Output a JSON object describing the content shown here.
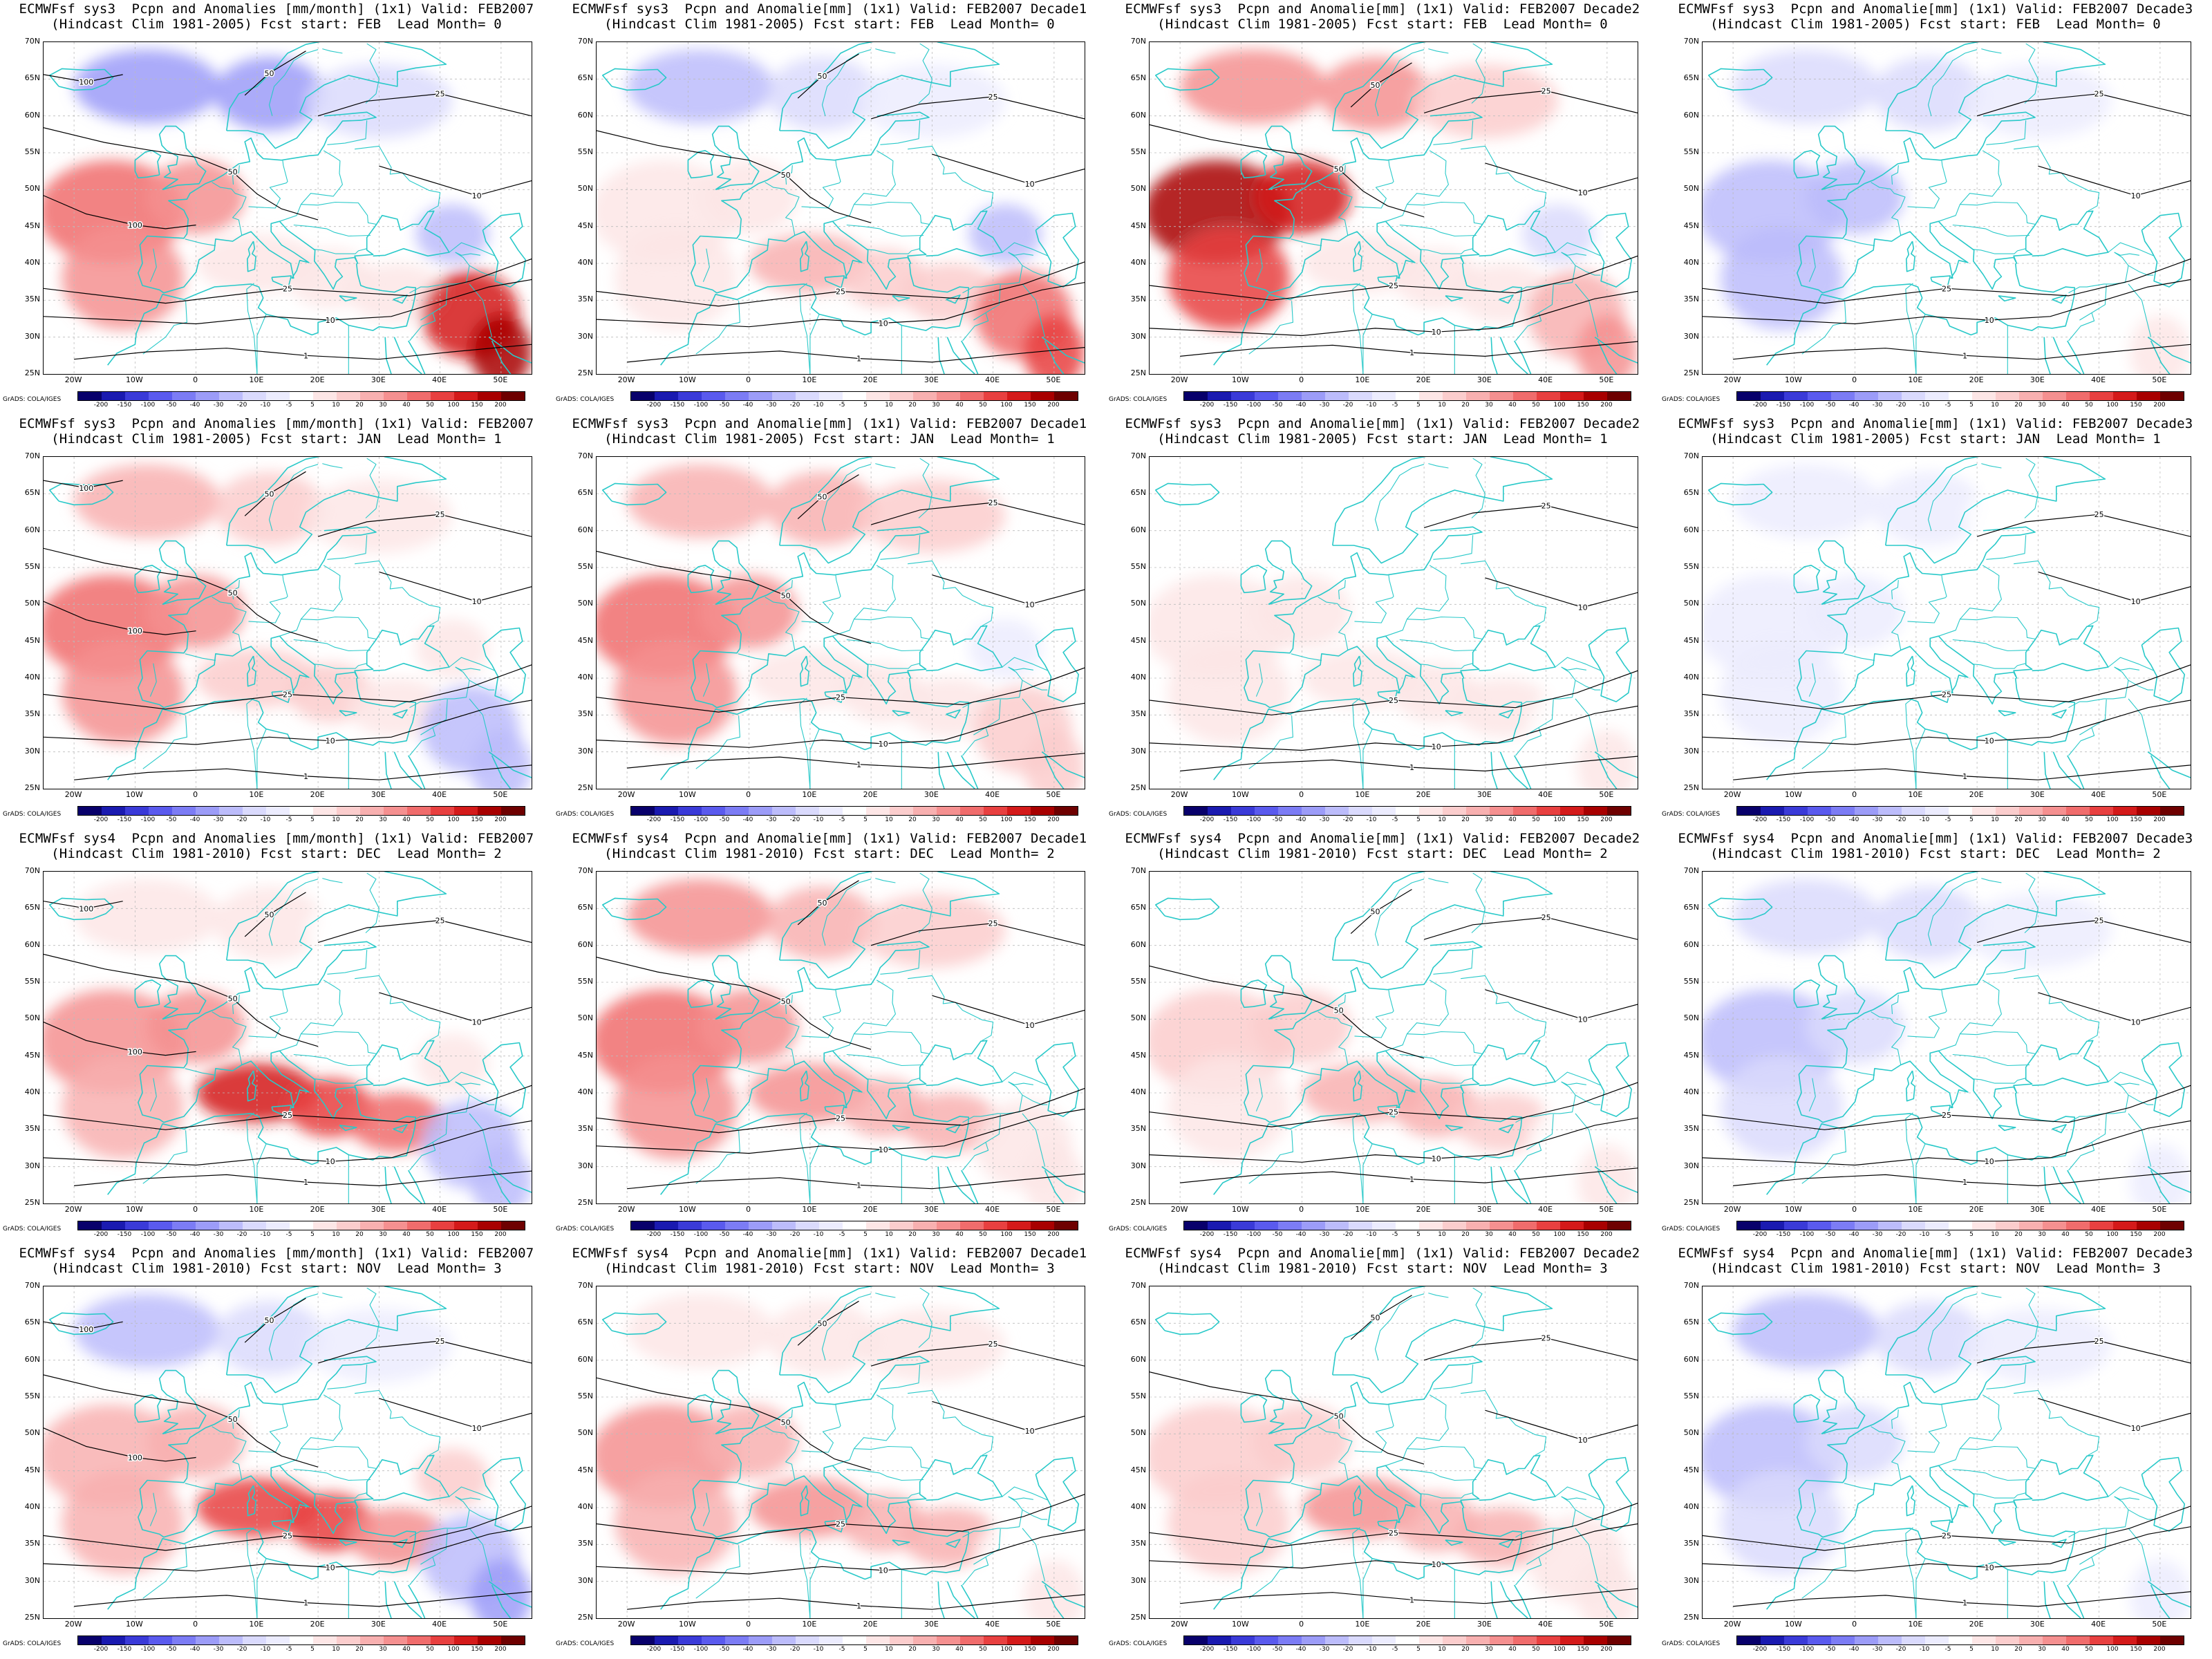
{
  "panels": [
    {
      "line1": "ECMWFsf sys3  Pcpn and Anomalies [mm/month] (1x1) Valid: FEB2007",
      "line2": "(Hindcast Clim 1981-2005) Fcst start: FEB  Lead Month= 0",
      "pattern": {
        "west": 0.55,
        "east": 0.75,
        "north": -0.45,
        "south": 0.1
      },
      "contours": [
        "100",
        "50",
        "25",
        "10",
        "1"
      ]
    },
    {
      "line1": "ECMWFsf sys3  Pcpn and Anomalie[mm] (1x1) Valid: FEB2007 Decade1",
      "line2": "(Hindcast Clim 1981-2005) Fcst start: FEB  Lead Month= 0",
      "pattern": {
        "west": 0.1,
        "east": 0.6,
        "north": -0.3,
        "south": 0.3
      },
      "contours": [
        "50",
        "25",
        "10",
        "1"
      ]
    },
    {
      "line1": "ECMWFsf sys3  Pcpn and Anomalie[mm] (1x1) Valid: FEB2007 Decade2",
      "line2": "(Hindcast Clim 1981-2005) Fcst start: FEB  Lead Month= 0",
      "pattern": {
        "west": 0.85,
        "east": 0.35,
        "north": 0.45,
        "south": 0.1
      },
      "contours": [
        "50",
        "25",
        "10",
        "1"
      ]
    },
    {
      "line1": "ECMWFsf sys3  Pcpn and Anomalie[mm] (1x1) Valid: FEB2007 Decade3",
      "line2": "(Hindcast Clim 1981-2005) Fcst start: FEB  Lead Month= 0",
      "pattern": {
        "west": -0.35,
        "east": 0.05,
        "north": -0.2,
        "south": 0.0
      },
      "contours": [
        "25",
        "10",
        "1"
      ]
    },
    {
      "line1": "ECMWFsf sys3  Pcpn and Anomalies [mm/month] (1x1) Valid: FEB2007",
      "line2": "(Hindcast Clim 1981-2005) Fcst start: JAN  Lead Month= 1",
      "pattern": {
        "west": 0.5,
        "east": -0.3,
        "north": 0.3,
        "south": 0.2
      },
      "contours": [
        "100",
        "50",
        "25",
        "10",
        "1"
      ]
    },
    {
      "line1": "ECMWFsf sys3  Pcpn and Anomalie[mm] (1x1) Valid: FEB2007 Decade1",
      "line2": "(Hindcast Clim 1981-2005) Fcst start: JAN  Lead Month= 1",
      "pattern": {
        "west": 0.55,
        "east": 0.2,
        "north": 0.35,
        "south": 0.15
      },
      "contours": [
        "50",
        "25",
        "10",
        "1"
      ]
    },
    {
      "line1": "ECMWFsf sys3  Pcpn and Anomalie[mm] (1x1) Valid: FEB2007 Decade2",
      "line2": "(Hindcast Clim 1981-2005) Fcst start: JAN  Lead Month= 1",
      "pattern": {
        "west": 0.1,
        "east": 0.05,
        "north": 0.05,
        "south": 0.15
      },
      "contours": [
        "25",
        "10",
        "1"
      ]
    },
    {
      "line1": "ECMWFsf sys3  Pcpn and Anomalie[mm] (1x1) Valid: FEB2007 Decade3",
      "line2": "(Hindcast Clim 1981-2005) Fcst start: JAN  Lead Month= 1",
      "pattern": {
        "west": -0.1,
        "east": 0.0,
        "north": -0.1,
        "south": 0.05
      },
      "contours": [
        "25",
        "10",
        "1"
      ]
    },
    {
      "line1": "ECMWFsf sys4  Pcpn and Anomalies [mm/month] (1x1) Valid: FEB2007",
      "line2": "(Hindcast Clim 1981-2010) Fcst start: DEC  Lead Month= 2",
      "pattern": {
        "west": 0.45,
        "east": -0.3,
        "north": 0.1,
        "south": 0.75
      },
      "contours": [
        "100",
        "50",
        "25",
        "10",
        "1"
      ]
    },
    {
      "line1": "ECMWFsf sys4  Pcpn and Anomalie[mm] (1x1) Valid: FEB2007 Decade1",
      "line2": "(Hindcast Clim 1981-2010) Fcst start: DEC  Lead Month= 2",
      "pattern": {
        "west": 0.55,
        "east": 0.1,
        "north": 0.4,
        "south": 0.4
      },
      "contours": [
        "50",
        "25",
        "10",
        "1"
      ]
    },
    {
      "line1": "ECMWFsf sys4  Pcpn and Anomalie[mm] (1x1) Valid: FEB2007 Decade2",
      "line2": "(Hindcast Clim 1981-2010) Fcst start: DEC  Lead Month= 2",
      "pattern": {
        "west": 0.2,
        "east": 0.05,
        "north": 0.0,
        "south": 0.35
      },
      "contours": [
        "50",
        "25",
        "10",
        "1"
      ]
    },
    {
      "line1": "ECMWFsf sys4  Pcpn and Anomalie[mm] (1x1) Valid: FEB2007 Decade3",
      "line2": "(Hindcast Clim 1981-2010) Fcst start: DEC  Lead Month= 2",
      "pattern": {
        "west": -0.3,
        "east": -0.05,
        "north": -0.2,
        "south": 0.05
      },
      "contours": [
        "25",
        "10",
        "1"
      ]
    },
    {
      "line1": "ECMWFsf sys4  Pcpn and Anomalies [mm/month] (1x1) Valid: FEB2007",
      "line2": "(Hindcast Clim 1981-2010) Fcst start: NOV  Lead Month= 3",
      "pattern": {
        "west": 0.35,
        "east": -0.35,
        "north": -0.3,
        "south": 0.7
      },
      "contours": [
        "100",
        "50",
        "25",
        "10",
        "1"
      ]
    },
    {
      "line1": "ECMWFsf sys4  Pcpn and Anomalie[mm] (1x1) Valid: FEB2007 Decade1",
      "line2": "(Hindcast Clim 1981-2010) Fcst start: NOV  Lead Month= 3",
      "pattern": {
        "west": 0.4,
        "east": 0.05,
        "north": 0.15,
        "south": 0.4
      },
      "contours": [
        "50",
        "25",
        "10",
        "1"
      ]
    },
    {
      "line1": "ECMWFsf sys4  Pcpn and Anomalie[mm] (1x1) Valid: FEB2007 Decade2",
      "line2": "(Hindcast Clim 1981-2010) Fcst start: NOV  Lead Month= 3",
      "pattern": {
        "west": 0.25,
        "east": 0.1,
        "north": 0.0,
        "south": 0.4
      },
      "contours": [
        "50",
        "25",
        "10",
        "1"
      ]
    },
    {
      "line1": "ECMWFsf sys4  Pcpn and Anomalie[mm] (1x1) Valid: FEB2007 Decade3",
      "line2": "(Hindcast Clim 1981-2010) Fcst start: NOV  Lead Month= 3",
      "pattern": {
        "west": -0.3,
        "east": -0.05,
        "north": -0.3,
        "south": 0.05
      },
      "contours": [
        "25",
        "10",
        "1"
      ]
    }
  ],
  "lat_labels": [
    "70N",
    "65N",
    "60N",
    "55N",
    "50N",
    "45N",
    "40N",
    "35N",
    "30N",
    "25N"
  ],
  "lon_labels": [
    "20W",
    "10W",
    "0",
    "10E",
    "20E",
    "30E",
    "40E",
    "50E"
  ],
  "colorbar": {
    "labels": [
      "-200",
      "-150",
      "-100",
      "-50",
      "-40",
      "-30",
      "-20",
      "-10",
      "-5",
      "5",
      "10",
      "20",
      "30",
      "40",
      "50",
      "100",
      "150",
      "200"
    ],
    "colors": [
      "#08006b",
      "#1a1ab0",
      "#3a3ad8",
      "#5a5aee",
      "#7c7cf5",
      "#9c9cf8",
      "#bcbcfb",
      "#dadafd",
      "#ececfe",
      "#ffffff",
      "#fde6e6",
      "#fbcdcd",
      "#f8b0b0",
      "#f59090",
      "#f06c6c",
      "#e84040",
      "#d41a1a",
      "#a80000",
      "#6e0000"
    ],
    "credit": "GrADS: COLA/IGES"
  },
  "colors": {
    "coast": "#29c9c9",
    "contour": "#000000",
    "grid": "#bbbbbb"
  }
}
